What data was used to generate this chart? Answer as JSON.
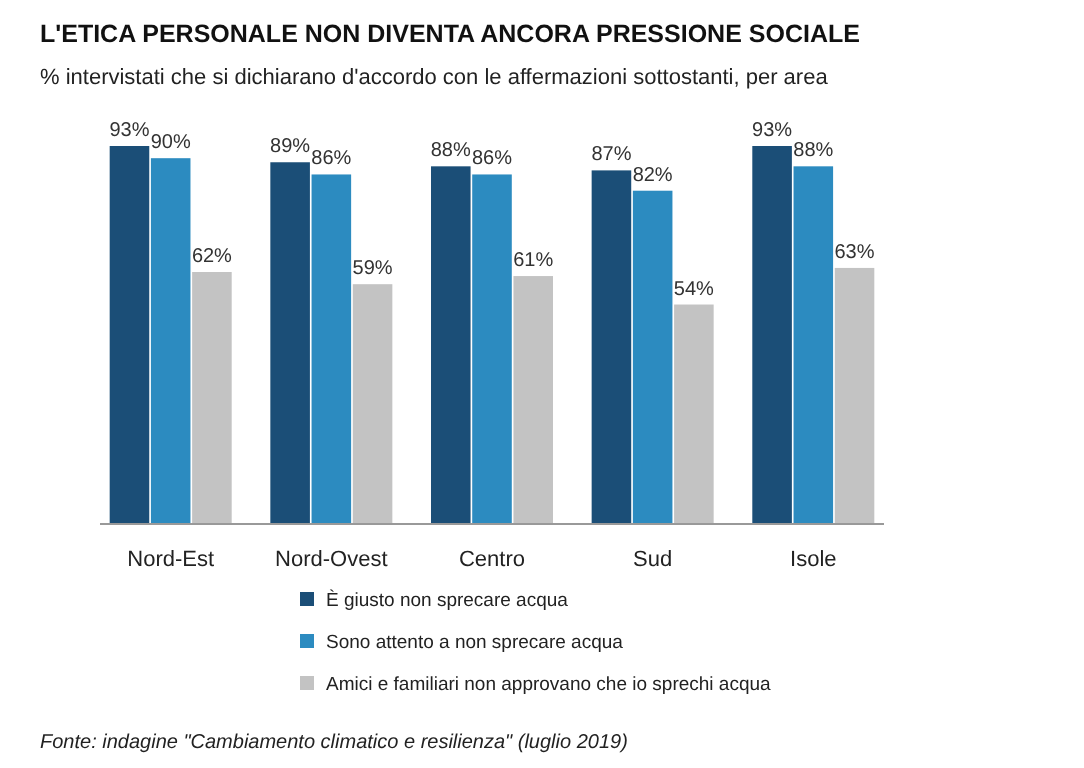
{
  "chart_data": {
    "type": "bar",
    "title": "L'ETICA PERSONALE NON DIVENTA ANCORA PRESSIONE SOCIALE",
    "subtitle": "% intervistati che si dichiarano d'accordo con le affermazioni sottostanti, per area",
    "categories": [
      "Nord-Est",
      "Nord-Ovest",
      "Centro",
      "Sud",
      "Isole"
    ],
    "series": [
      {
        "name": "È giusto non sprecare acqua",
        "color": "#1b4e77",
        "values": [
          93,
          89,
          88,
          87,
          93
        ],
        "value_labels": [
          "93%",
          "89%",
          "88%",
          "87%",
          "93%"
        ]
      },
      {
        "name": "Sono attento a non sprecare acqua",
        "color": "#2c8bc0",
        "values": [
          90,
          86,
          86,
          82,
          88
        ],
        "value_labels": [
          "90%",
          "86%",
          "86%",
          "82%",
          "88%"
        ]
      },
      {
        "name": "Amici e familiari non approvano che io sprechi acqua",
        "color": "#c3c3c3",
        "values": [
          62,
          59,
          61,
          54,
          63
        ],
        "value_labels": [
          "62%",
          "59%",
          "61%",
          "54%",
          "63%"
        ]
      }
    ],
    "legend": "bottom",
    "annotations": [
      "Fonte: indagine \"Cambiamento climatico e resilienza\" (luglio 2019)"
    ]
  }
}
